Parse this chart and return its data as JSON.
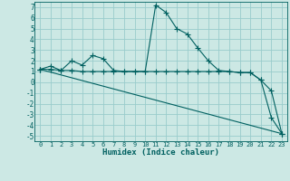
{
  "xlabel": "Humidex (Indice chaleur)",
  "bg_color": "#cce8e4",
  "grid_color": "#99cccc",
  "line_color": "#006060",
  "xlim": [
    -0.5,
    23.5
  ],
  "ylim": [
    -5.5,
    7.5
  ],
  "xticks": [
    0,
    1,
    2,
    3,
    4,
    5,
    6,
    7,
    8,
    9,
    10,
    11,
    12,
    13,
    14,
    15,
    16,
    17,
    18,
    19,
    20,
    21,
    22,
    23
  ],
  "yticks": [
    -5,
    -4,
    -3,
    -2,
    -1,
    0,
    1,
    2,
    3,
    4,
    5,
    6,
    7
  ],
  "series": [
    {
      "x": [
        0,
        1,
        2,
        3,
        4,
        5,
        6,
        7,
        8,
        9,
        10,
        11,
        12,
        13,
        14,
        15,
        16,
        17,
        18,
        19,
        20,
        21,
        22,
        23
      ],
      "y": [
        1.2,
        1.5,
        1.1,
        2.0,
        1.6,
        2.5,
        2.2,
        1.1,
        1.0,
        1.0,
        1.0,
        7.2,
        6.5,
        5.0,
        4.5,
        3.2,
        2.0,
        1.1,
        1.0,
        0.9,
        0.9,
        0.2,
        -3.3,
        -4.8
      ]
    },
    {
      "x": [
        0,
        1,
        2,
        3,
        4,
        5,
        6,
        7,
        8,
        9,
        10,
        11,
        12,
        13,
        14,
        15,
        16,
        17,
        18,
        19,
        20,
        21,
        22,
        23
      ],
      "y": [
        1.2,
        1.2,
        1.1,
        1.1,
        1.0,
        1.0,
        1.0,
        1.0,
        1.0,
        1.0,
        1.0,
        1.0,
        1.0,
        1.0,
        1.0,
        1.0,
        1.0,
        1.0,
        1.0,
        0.9,
        0.9,
        0.2,
        -0.8,
        -4.8
      ]
    },
    {
      "x": [
        0,
        23
      ],
      "y": [
        1.2,
        -4.8
      ]
    }
  ]
}
